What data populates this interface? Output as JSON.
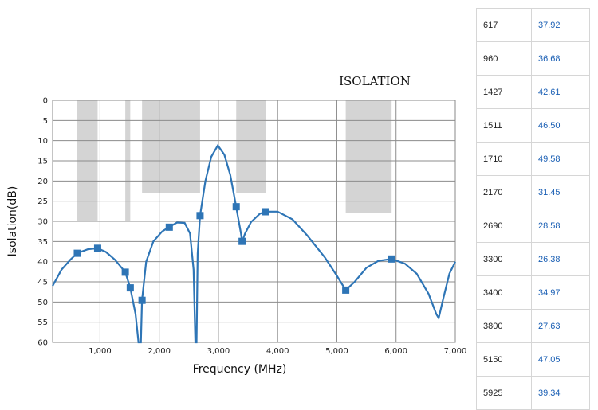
{
  "chart_data": {
    "type": "line",
    "title": "ISOLATION",
    "xlabel": "Frequency (MHz)",
    "ylabel": "Isolation(dB)",
    "xlim": [
      200,
      7000
    ],
    "ylim": [
      0,
      60
    ],
    "y_inverted": true,
    "x_ticks": [
      1000,
      2000,
      3000,
      4000,
      5000,
      6000,
      7000
    ],
    "x_tick_labels": [
      "1,000",
      "2,000",
      "3,000",
      "4,000",
      "5,000",
      "6,000",
      "7,000"
    ],
    "y_ticks": [
      0,
      5,
      10,
      15,
      20,
      25,
      30,
      35,
      40,
      45,
      50,
      55,
      60
    ],
    "grid": true,
    "line_color": "#2e75b6",
    "band_color": "#d4d4d4",
    "bands": [
      {
        "x0": 617,
        "x1": 960,
        "limit": 30
      },
      {
        "x0": 1427,
        "x1": 1511,
        "limit": 30
      },
      {
        "x0": 1710,
        "x1": 2690,
        "limit": 23
      },
      {
        "x0": 3300,
        "x1": 3800,
        "limit": 23
      },
      {
        "x0": 5150,
        "x1": 5925,
        "limit": 28
      }
    ],
    "series": [
      {
        "name": "",
        "points": [
          [
            617,
            37.92
          ],
          [
            960,
            36.68
          ],
          [
            1427,
            42.61
          ],
          [
            1511,
            46.5
          ],
          [
            1710,
            49.58
          ],
          [
            2170,
            31.45
          ],
          [
            2690,
            28.58
          ],
          [
            3300,
            26.38
          ],
          [
            3400,
            34.97
          ],
          [
            3800,
            27.63
          ],
          [
            5150,
            47.05
          ],
          [
            5925,
            39.34
          ]
        ],
        "curve": [
          [
            200,
            46
          ],
          [
            350,
            42
          ],
          [
            500,
            39.5
          ],
          [
            617,
            37.9
          ],
          [
            800,
            36.9
          ],
          [
            960,
            36.7
          ],
          [
            1100,
            37.6
          ],
          [
            1250,
            39.5
          ],
          [
            1427,
            42.6
          ],
          [
            1511,
            46.5
          ],
          [
            1600,
            53
          ],
          [
            1650,
            60
          ],
          [
            1690,
            60
          ],
          [
            1710,
            49.6
          ],
          [
            1780,
            40
          ],
          [
            1900,
            35
          ],
          [
            2050,
            32.5
          ],
          [
            2170,
            31.4
          ],
          [
            2300,
            30.3
          ],
          [
            2430,
            30.4
          ],
          [
            2520,
            33
          ],
          [
            2580,
            42
          ],
          [
            2610,
            60
          ],
          [
            2630,
            60
          ],
          [
            2650,
            38
          ],
          [
            2690,
            28.6
          ],
          [
            2780,
            20
          ],
          [
            2880,
            14
          ],
          [
            2990,
            11.2
          ],
          [
            3100,
            13.5
          ],
          [
            3200,
            18.5
          ],
          [
            3300,
            26.4
          ],
          [
            3380,
            33
          ],
          [
            3400,
            35
          ],
          [
            3450,
            33
          ],
          [
            3550,
            30.2
          ],
          [
            3700,
            28.1
          ],
          [
            3800,
            27.6
          ],
          [
            4000,
            27.6
          ],
          [
            4250,
            29.5
          ],
          [
            4500,
            33.5
          ],
          [
            4800,
            39
          ],
          [
            5000,
            43.5
          ],
          [
            5150,
            47.05
          ],
          [
            5300,
            45
          ],
          [
            5500,
            41.5
          ],
          [
            5700,
            39.8
          ],
          [
            5925,
            39.34
          ],
          [
            6150,
            40.5
          ],
          [
            6350,
            43
          ],
          [
            6550,
            48
          ],
          [
            6680,
            53
          ],
          [
            6720,
            54
          ],
          [
            6800,
            49
          ],
          [
            6900,
            43
          ],
          [
            7000,
            40
          ]
        ]
      }
    ]
  },
  "table": {
    "rows": [
      [
        "617",
        "37.92"
      ],
      [
        "960",
        "36.68"
      ],
      [
        "1427",
        "42.61"
      ],
      [
        "1511",
        "46.50"
      ],
      [
        "1710",
        "49.58"
      ],
      [
        "2170",
        "31.45"
      ],
      [
        "2690",
        "28.58"
      ],
      [
        "3300",
        "26.38"
      ],
      [
        "3400",
        "34.97"
      ],
      [
        "3800",
        "27.63"
      ],
      [
        "5150",
        "47.05"
      ],
      [
        "5925",
        "39.34"
      ]
    ]
  }
}
